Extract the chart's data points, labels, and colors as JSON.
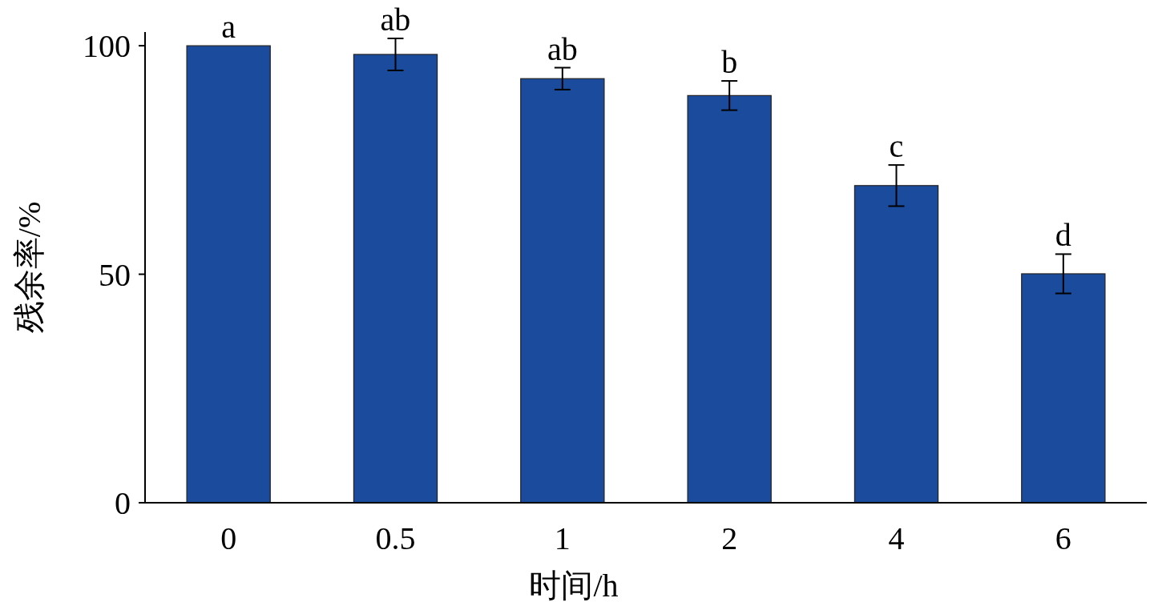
{
  "chart_data": {
    "type": "bar",
    "xlabel": "时间/h",
    "ylabel": "残余率/%",
    "categories": [
      "0",
      "0.5",
      "1",
      "2",
      "4",
      "6"
    ],
    "values": [
      100,
      98.1,
      92.8,
      89.1,
      69.4,
      50.1
    ],
    "errors": [
      null,
      3.5,
      2.4,
      3.2,
      4.5,
      4.3
    ],
    "color": "#1a4b9c",
    "ylim": [
      0,
      103
    ],
    "yticks": [
      0,
      50,
      100
    ],
    "grid": false,
    "annotations": [
      {
        "text": "a",
        "x": "0",
        "y": 100
      },
      {
        "text": "ab",
        "x": "0.5",
        "y": 101.6
      },
      {
        "text": "ab",
        "x": "1",
        "y": 95.2
      },
      {
        "text": "b",
        "x": "2",
        "y": 92.3
      },
      {
        "text": "c",
        "x": "4",
        "y": 73.9
      },
      {
        "text": "d",
        "x": "6",
        "y": 54.4
      }
    ]
  }
}
